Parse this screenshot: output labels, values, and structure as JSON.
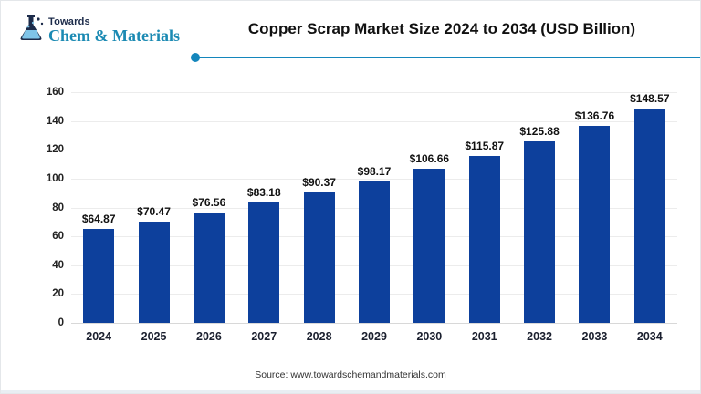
{
  "header": {
    "logo_top": "Towards",
    "logo_bottom": "Chem & Materials"
  },
  "chart_data": {
    "type": "bar",
    "title": "Copper Scrap Market Size 2024 to 2034 (USD Billion)",
    "categories": [
      "2024",
      "2025",
      "2026",
      "2027",
      "2028",
      "2029",
      "2030",
      "2031",
      "2032",
      "2033",
      "2034"
    ],
    "values": [
      64.87,
      70.47,
      76.56,
      83.18,
      90.37,
      98.17,
      106.66,
      115.87,
      125.88,
      136.76,
      148.57
    ],
    "value_labels": [
      "$64.87",
      "$70.47",
      "$76.56",
      "$83.18",
      "$90.37",
      "$98.17",
      "$106.66",
      "$115.87",
      "$125.88",
      "$136.76",
      "$148.57"
    ],
    "xlabel": "",
    "ylabel": "",
    "ylim": [
      0,
      160
    ],
    "ytick_step": 20,
    "grid": true,
    "legend": "none",
    "bar_color": "#0d409c"
  },
  "footer": {
    "source": "Source: www.towardschemandmaterials.com"
  },
  "colors": {
    "bar": "#0d409c",
    "brand_teal": "#1b8ab3",
    "brand_navy": "#1c2b4a",
    "divider": "#1486bc",
    "gridline": "#ececec"
  }
}
